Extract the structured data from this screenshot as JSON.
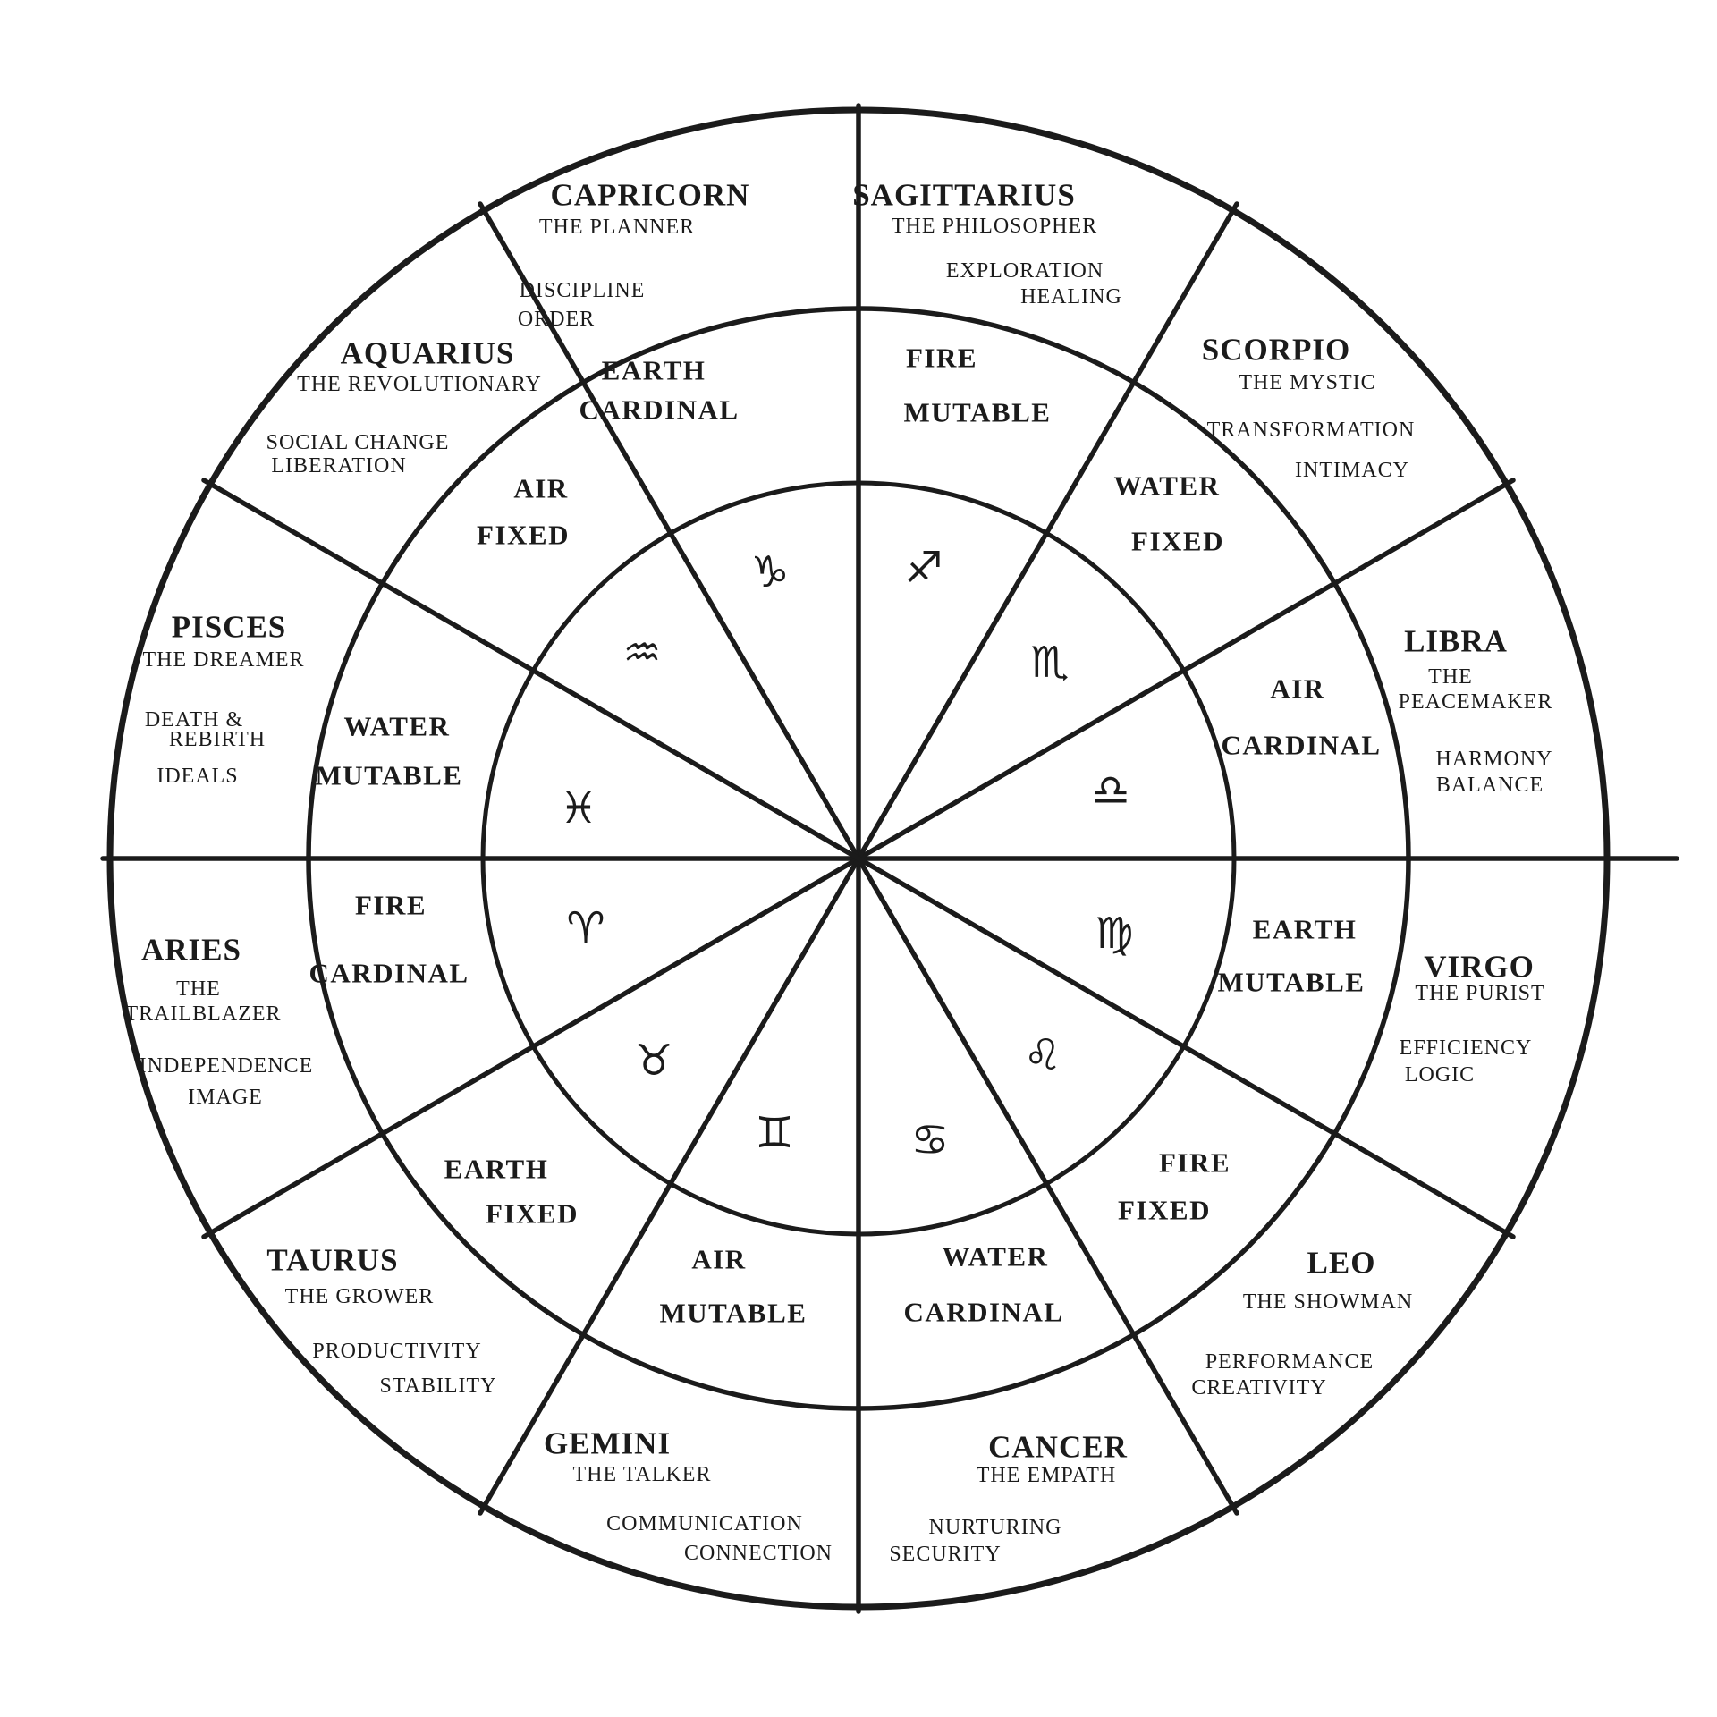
{
  "title": "Zodiac wheel of signs, elements and modalities",
  "colors": {
    "ink": "#1b1b1b",
    "background": "#ffffff"
  },
  "wheel": {
    "signs": [
      {
        "name": "CAPRICORN",
        "nickname": [
          "THE PLANNER"
        ],
        "keywords": [
          "DISCIPLINE",
          "ORDER"
        ],
        "element": "EARTH",
        "modality": "CARDINAL",
        "glyph": "♑"
      },
      {
        "name": "SAGITTARIUS",
        "nickname": [
          "THE PHILOSOPHER"
        ],
        "keywords": [
          "EXPLORATION",
          "HEALING"
        ],
        "element": "FIRE",
        "modality": "MUTABLE",
        "glyph": "♐"
      },
      {
        "name": "SCORPIO",
        "nickname": [
          "THE MYSTIC"
        ],
        "keywords": [
          "TRANSFORMATION",
          "INTIMACY"
        ],
        "element": "WATER",
        "modality": "FIXED",
        "glyph": "♏"
      },
      {
        "name": "LIBRA",
        "nickname": [
          "THE",
          "PEACEMAKER"
        ],
        "keywords": [
          "HARMONY",
          "BALANCE"
        ],
        "element": "AIR",
        "modality": "CARDINAL",
        "glyph": "♎"
      },
      {
        "name": "VIRGO",
        "nickname": [
          "THE PURIST"
        ],
        "keywords": [
          "EFFICIENCY",
          "LOGIC"
        ],
        "element": "EARTH",
        "modality": "MUTABLE",
        "glyph": "♍"
      },
      {
        "name": "LEO",
        "nickname": [
          "THE SHOWMAN"
        ],
        "keywords": [
          "PERFORMANCE",
          "CREATIVITY"
        ],
        "element": "FIRE",
        "modality": "FIXED",
        "glyph": "♌"
      },
      {
        "name": "CANCER",
        "nickname": [
          "THE EMPATH"
        ],
        "keywords": [
          "NURTURING",
          "SECURITY"
        ],
        "element": "WATER",
        "modality": "CARDINAL",
        "glyph": "♋"
      },
      {
        "name": "GEMINI",
        "nickname": [
          "THE TALKER"
        ],
        "keywords": [
          "COMMUNICATION",
          "CONNECTION"
        ],
        "element": "AIR",
        "modality": "MUTABLE",
        "glyph": "♊"
      },
      {
        "name": "TAURUS",
        "nickname": [
          "THE GROWER"
        ],
        "keywords": [
          "PRODUCTIVITY",
          "STABILITY"
        ],
        "element": "EARTH",
        "modality": "FIXED",
        "glyph": "♉"
      },
      {
        "name": "ARIES",
        "nickname": [
          "THE",
          "TRAILBLAZER"
        ],
        "keywords": [
          "INDEPENDENCE",
          "IMAGE"
        ],
        "element": "FIRE",
        "modality": "CARDINAL",
        "glyph": "♈"
      },
      {
        "name": "PISCES",
        "nickname": [
          "THE DREAMER"
        ],
        "keywords": [
          "DEATH &",
          "REBIRTH",
          "IDEALS"
        ],
        "element": "WATER",
        "modality": "MUTABLE",
        "glyph": "♓"
      },
      {
        "name": "AQUARIUS",
        "nickname": [
          "THE REVOLUTIONARY"
        ],
        "keywords": [
          "SOCIAL CHANGE",
          "LIBERATION"
        ],
        "element": "AIR",
        "modality": "FIXED",
        "glyph": "♒"
      }
    ]
  }
}
